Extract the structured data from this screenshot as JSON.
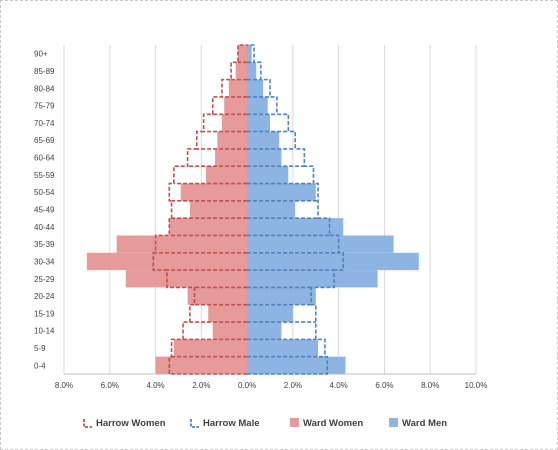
{
  "chart_data": {
    "type": "bar",
    "title": "",
    "xlabel": "",
    "ylabel": "",
    "xlim": [
      -8,
      10
    ],
    "x_ticks": [
      "8.0%",
      "6.0%",
      "4.0%",
      "2.0%",
      "0.0%",
      "2.0%",
      "4.0%",
      "6.0%",
      "8.0%",
      "10.0%"
    ],
    "x_tick_values": [
      -8,
      -6,
      -4,
      -2,
      0,
      2,
      4,
      6,
      8,
      10
    ],
    "categories": [
      "0-4",
      "5-9",
      "10-14",
      "15-19",
      "20-24",
      "25-29",
      "30-34",
      "35-39",
      "40-44",
      "45-49",
      "50-54",
      "55-59",
      "60-64",
      "65-69",
      "70-74",
      "75-79",
      "80-84",
      "85-89",
      "90+"
    ],
    "grid": "vertical",
    "legend_position": "bottom",
    "series": [
      {
        "name": "Harrow Women",
        "style": "dashed-outline",
        "color": "#c0504d",
        "values": [
          3.4,
          3.3,
          2.8,
          2.5,
          2.3,
          3.5,
          4.1,
          4.0,
          3.4,
          3.3,
          3.4,
          3.2,
          2.6,
          2.2,
          1.9,
          1.5,
          1.1,
          0.7,
          0.4
        ]
      },
      {
        "name": "Harrow Male",
        "style": "dashed-outline",
        "color": "#4f81bd",
        "values": [
          3.5,
          3.4,
          3.0,
          3.0,
          2.8,
          3.8,
          4.2,
          4.0,
          3.6,
          3.1,
          3.1,
          2.9,
          2.5,
          2.1,
          1.8,
          1.3,
          1.0,
          0.6,
          0.3
        ]
      },
      {
        "name": "Ward Women",
        "style": "filled",
        "color": "#e79a9a",
        "values": [
          4.0,
          3.2,
          1.5,
          1.7,
          2.6,
          5.3,
          7.0,
          5.7,
          3.4,
          2.5,
          2.9,
          1.8,
          1.4,
          1.3,
          1.1,
          1.0,
          0.8,
          0.5,
          0.4
        ]
      },
      {
        "name": "Ward Men",
        "style": "filled",
        "color": "#8db4e2",
        "values": [
          4.3,
          3.1,
          1.5,
          2.0,
          3.0,
          5.7,
          7.5,
          6.4,
          4.2,
          2.1,
          3.0,
          1.8,
          1.5,
          1.4,
          1.0,
          0.9,
          0.7,
          0.4,
          0.2
        ]
      }
    ]
  }
}
